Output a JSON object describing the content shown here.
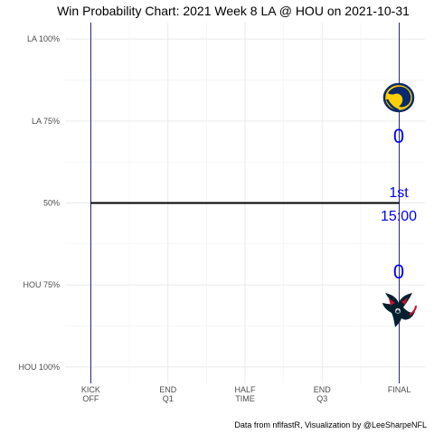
{
  "chart_data": {
    "type": "line",
    "title": "Win Probability Chart: 2021 Week 8 LA @ HOU on 2021-10-31",
    "caption": "Data from nflfastR, Visualization by @LeeSharpeNFL",
    "y_ticks": [
      {
        "value": 100,
        "label": "LA 100%"
      },
      {
        "value": 75,
        "label": "LA 75%"
      },
      {
        "value": 50,
        "label": "50%"
      },
      {
        "value": 25,
        "label": "HOU 75%"
      },
      {
        "value": 0,
        "label": "HOU 100%"
      }
    ],
    "x_ticks": [
      {
        "value": 0,
        "label": [
          "KICK",
          "OFF"
        ]
      },
      {
        "value": 15,
        "label": [
          "END",
          "Q1"
        ]
      },
      {
        "value": 30,
        "label": [
          "HALF",
          "TIME"
        ]
      },
      {
        "value": 45,
        "label": [
          "END",
          "Q3"
        ]
      },
      {
        "value": 60,
        "label": [
          "FINAL"
        ]
      }
    ],
    "xlim": [
      -5,
      65
    ],
    "ylim": [
      -5,
      105
    ],
    "grid": true,
    "boundary_lines": [
      0,
      60
    ],
    "series": [
      {
        "x": [
          0,
          60
        ],
        "y": [
          50,
          50
        ],
        "color": "#000000"
      }
    ],
    "teams": {
      "away": {
        "abbr": "LA",
        "score": "0",
        "logo": "rams-logo"
      },
      "home": {
        "abbr": "HOU",
        "score": "0",
        "logo": "texans-logo"
      }
    },
    "game_clock": {
      "quarter": "1st",
      "time": "15:00"
    }
  }
}
